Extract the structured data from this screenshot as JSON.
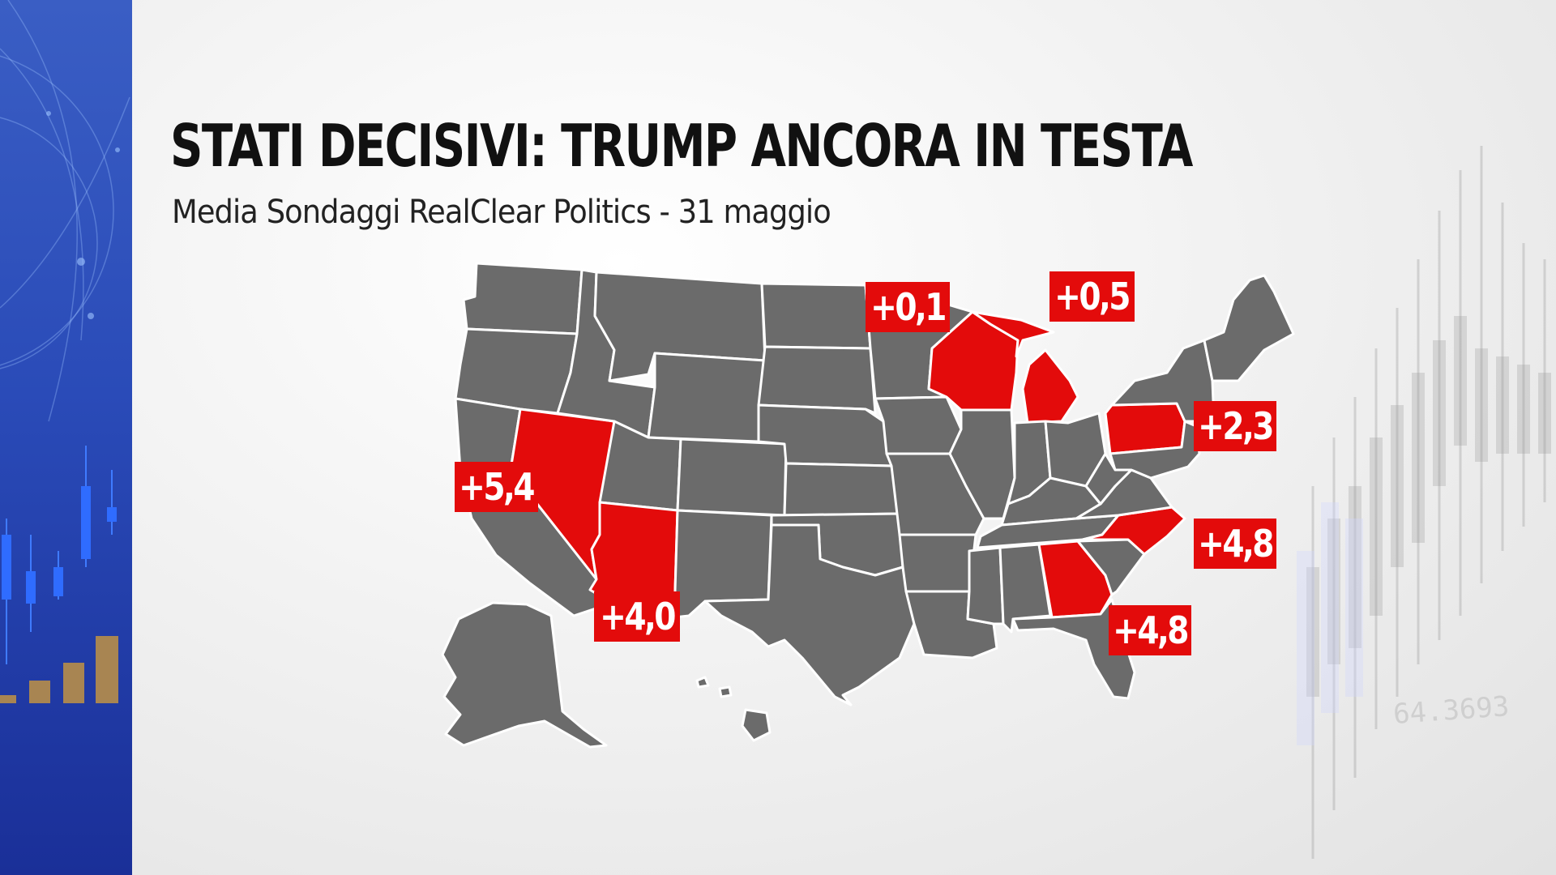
{
  "header": {
    "title": "STATI DECISIVI: TRUMP ANCORA IN TESTA",
    "subtitle": "Media Sondaggi RealClear Politics  - 31 maggio"
  },
  "colors": {
    "swing_state": "#e30b0b",
    "other_state": "#6b6b6b",
    "side_panel": "#2a4bb8"
  },
  "swing_states": [
    {
      "state": "Nevada",
      "margin": "+5,4"
    },
    {
      "state": "Arizona",
      "margin": "+4,0"
    },
    {
      "state": "Wisconsin",
      "margin": "+0,1"
    },
    {
      "state": "Michigan",
      "margin": "+0,5"
    },
    {
      "state": "Pennsylvania",
      "margin": "+2,3"
    },
    {
      "state": "North Carolina",
      "margin": "+4,8"
    },
    {
      "state": "Georgia",
      "margin": "+4,8"
    }
  ],
  "background_text": {
    "ticker": "64.3693"
  }
}
